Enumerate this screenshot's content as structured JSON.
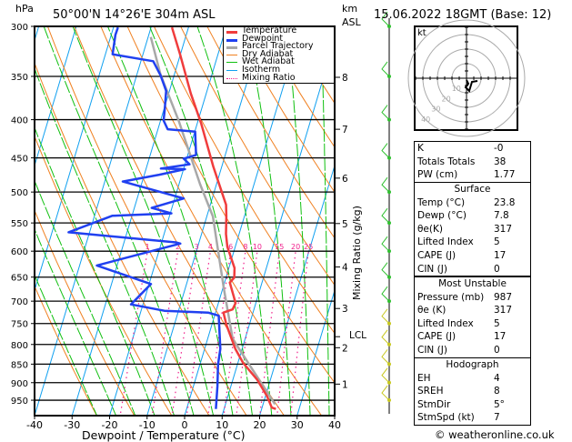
{
  "header": {
    "pressure_unit": "hPa",
    "location": "50°00'N 14°26'E 304m ASL",
    "height_unit_line1": "km",
    "height_unit_line2": "ASL",
    "datetime": "15.06.2022 18GMT (Base: 12)"
  },
  "legend": [
    {
      "label": "Temperature",
      "color": "#f03c3c",
      "style": "solid"
    },
    {
      "label": "Dewpoint",
      "color": "#2040f0",
      "style": "solid"
    },
    {
      "label": "Parcel Trajectory",
      "color": "#a8a8a8",
      "style": "solid"
    },
    {
      "label": "Dry Adiabat",
      "color": "#f08020",
      "style": "thin"
    },
    {
      "label": "Wet Adiabat",
      "color": "#10c010",
      "style": "thin"
    },
    {
      "label": "Isotherm",
      "color": "#10a0f0",
      "style": "thin"
    },
    {
      "label": "Mixing Ratio",
      "color": "#f0208c",
      "style": "dotted"
    }
  ],
  "chart_data": {
    "type": "line",
    "subtype": "skew-T log-p",
    "title": "50°00'N 14°26'E 304m ASL",
    "xlabel": "Dewpoint / Temperature (°C)",
    "ylabel": "hPa",
    "secondary_ylabel": "Mixing Ratio (g/kg)",
    "xlim": [
      -40,
      40
    ],
    "ylim": [
      1000,
      300
    ],
    "x_ticks": [
      -40,
      -30,
      -20,
      -10,
      0,
      10,
      20,
      30,
      40
    ],
    "pressure_ticks": [
      300,
      350,
      400,
      450,
      500,
      550,
      600,
      650,
      700,
      750,
      800,
      850,
      900,
      950
    ],
    "km_ticks": [
      1,
      2,
      3,
      4,
      5,
      6,
      7,
      8
    ],
    "km_tick_pressures": [
      904,
      808,
      716,
      630,
      551,
      479,
      412,
      351
    ],
    "lcl_label": "LCL",
    "lcl_pressure": 781,
    "mixing_ratio_labels": [
      1,
      2,
      3,
      4,
      6,
      8,
      10,
      15,
      20,
      25
    ],
    "series": [
      {
        "name": "Temperature",
        "points": [
          [
            976,
            23.8
          ],
          [
            972,
            22.6
          ],
          [
            938,
            20.4
          ],
          [
            892,
            16.5
          ],
          [
            847,
            11.4
          ],
          [
            811,
            8.2
          ],
          [
            753,
            3.9
          ],
          [
            725,
            2.1
          ],
          [
            718,
            4.3
          ],
          [
            704,
            4.6
          ],
          [
            661,
            1.4
          ],
          [
            651,
            2.2
          ],
          [
            632,
            1.5
          ],
          [
            592,
            -2.1
          ],
          [
            569,
            -3.5
          ],
          [
            539,
            -4.8
          ],
          [
            520,
            -5.8
          ],
          [
            498,
            -8.2
          ],
          [
            462,
            -12.3
          ],
          [
            444,
            -14.3
          ],
          [
            405,
            -18.9
          ],
          [
            369,
            -24.1
          ],
          [
            327,
            -30.1
          ],
          [
            301,
            -34.4
          ]
        ]
      },
      {
        "name": "Dewpoint",
        "points": [
          [
            976,
            7.8
          ],
          [
            910,
            6.4
          ],
          [
            850,
            4.8
          ],
          [
            811,
            4.2
          ],
          [
            732,
            1.1
          ],
          [
            725,
            -2.0
          ],
          [
            721,
            -13.8
          ],
          [
            707,
            -23.2
          ],
          [
            664,
            -19.5
          ],
          [
            627,
            -35.4
          ],
          [
            586,
            -14.9
          ],
          [
            584,
            -16.2
          ],
          [
            566,
            -45.6
          ],
          [
            538,
            -35.3
          ],
          [
            534,
            -19.7
          ],
          [
            525,
            -25.4
          ],
          [
            510,
            -17.6
          ],
          [
            484,
            -35.2
          ],
          [
            474,
            -26.0
          ],
          [
            466,
            -19.6
          ],
          [
            465,
            -26.1
          ],
          [
            459,
            -18.8
          ],
          [
            451,
            -20.8
          ],
          [
            446,
            -17.8
          ],
          [
            415,
            -19.9
          ],
          [
            412,
            -27.4
          ],
          [
            401,
            -29.2
          ],
          [
            387,
            -29.8
          ],
          [
            366,
            -30.9
          ],
          [
            349,
            -33.6
          ],
          [
            334,
            -36.7
          ],
          [
            327,
            -48.1
          ],
          [
            308,
            -48.9
          ],
          [
            301,
            -48.8
          ]
        ]
      },
      {
        "name": "Parcel Trajectory",
        "points": [
          [
            962,
            23.2
          ],
          [
            787,
            6.7
          ],
          [
            675,
            0.4
          ],
          [
            539,
            -8.4
          ],
          [
            488,
            -14.4
          ],
          [
            401,
            -25.2
          ],
          [
            348,
            -33.7
          ],
          [
            310,
            -39.3
          ]
        ]
      }
    ],
    "wind_profile": [
      [
        950,
        5
      ],
      [
        900,
        5
      ],
      [
        850,
        5
      ],
      [
        800,
        10
      ],
      [
        750,
        10
      ],
      [
        700,
        10
      ],
      [
        650,
        15
      ],
      [
        600,
        15
      ],
      [
        550,
        20
      ],
      [
        500,
        20
      ],
      [
        450,
        25
      ],
      [
        400,
        25
      ],
      [
        350,
        30
      ],
      [
        300,
        30
      ]
    ]
  },
  "hodograph": {
    "unit": "kt",
    "ring_labels": [
      "10",
      "20",
      "30",
      "40"
    ]
  },
  "indices": [
    {
      "label": "K",
      "value": "-0"
    },
    {
      "label": "Totals Totals",
      "value": "38"
    },
    {
      "label": "PW (cm)",
      "value": "1.77"
    }
  ],
  "surface": {
    "title": "Surface",
    "rows": [
      {
        "label": "Temp (°C)",
        "value": "23.8"
      },
      {
        "label": "Dewp (°C)",
        "value": "7.8"
      },
      {
        "label": "θe(K)",
        "value": "317"
      },
      {
        "label": "Lifted Index",
        "value": "5"
      },
      {
        "label": "CAPE (J)",
        "value": "17"
      },
      {
        "label": "CIN (J)",
        "value": "0"
      }
    ]
  },
  "most_unstable": {
    "title": "Most Unstable",
    "rows": [
      {
        "label": "Pressure (mb)",
        "value": "987"
      },
      {
        "label": "θe (K)",
        "value": "317"
      },
      {
        "label": "Lifted Index",
        "value": "5"
      },
      {
        "label": "CAPE (J)",
        "value": "17"
      },
      {
        "label": "CIN (J)",
        "value": "0"
      }
    ]
  },
  "hodograph_table": {
    "title": "Hodograph",
    "rows": [
      {
        "label": "EH",
        "value": "4"
      },
      {
        "label": "SREH",
        "value": "8"
      },
      {
        "label": "StmDir",
        "value": "5°"
      },
      {
        "label": "StmSpd (kt)",
        "value": "7"
      }
    ]
  },
  "footer": {
    "copyright": "© weatheronline.co.uk"
  }
}
